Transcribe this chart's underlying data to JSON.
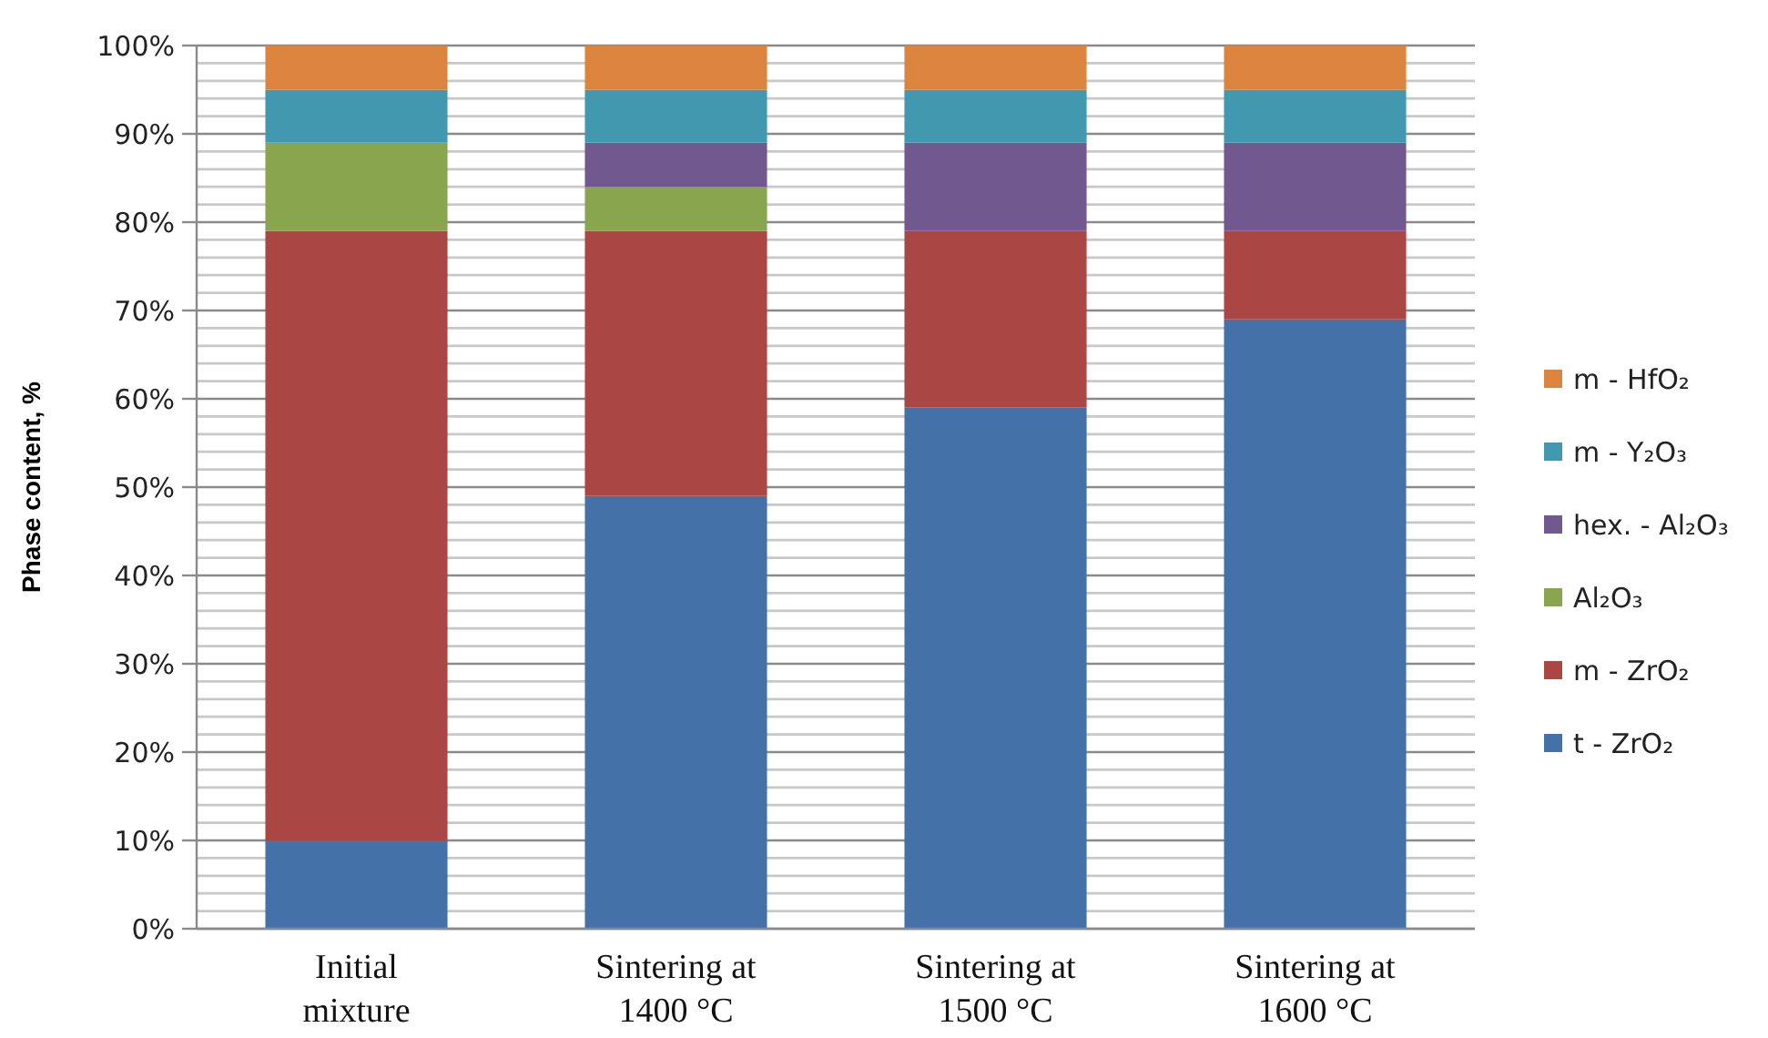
{
  "chart_data": {
    "type": "bar",
    "stacked": true,
    "ylabel": "Phase content, %",
    "categories": [
      "Initial mixture",
      "Sintering at 1400 °C",
      "Sintering at 1500 °C",
      "Sintering at 1600 °C"
    ],
    "series": [
      {
        "name": "t - ZrO₂",
        "color": "#4472a8",
        "values": [
          10,
          49,
          59,
          69
        ]
      },
      {
        "name": "m - ZrO₂",
        "color": "#aa4644",
        "values": [
          69,
          30,
          20,
          10
        ]
      },
      {
        "name": "Al₂O₃",
        "color": "#89a54e",
        "values": [
          10,
          5,
          0,
          0
        ]
      },
      {
        "name": "hex. - Al₂O₃",
        "color": "#71588f",
        "values": [
          0,
          5,
          10,
          10
        ]
      },
      {
        "name": "m - Y₂O₃",
        "color": "#4198af",
        "values": [
          6,
          6,
          6,
          6
        ]
      },
      {
        "name": "m - HfO₂",
        "color": "#db843d",
        "values": [
          5,
          5,
          5,
          5
        ]
      }
    ],
    "ylim": [
      0,
      100
    ],
    "yticks": [
      {
        "value": 0,
        "label": "0%"
      },
      {
        "value": 2,
        "label": null
      },
      {
        "value": 4,
        "label": null
      },
      {
        "value": 6,
        "label": null
      },
      {
        "value": 8,
        "label": null
      },
      {
        "value": 10,
        "label": "10%"
      },
      {
        "value": 12,
        "label": null
      },
      {
        "value": 14,
        "label": null
      },
      {
        "value": 16,
        "label": null
      },
      {
        "value": 18,
        "label": null
      },
      {
        "value": 20,
        "label": "20%"
      },
      {
        "value": 22,
        "label": null
      },
      {
        "value": 24,
        "label": null
      },
      {
        "value": 26,
        "label": null
      },
      {
        "value": 28,
        "label": null
      },
      {
        "value": 30,
        "label": "30%"
      },
      {
        "value": 32,
        "label": null
      },
      {
        "value": 34,
        "label": null
      },
      {
        "value": 36,
        "label": null
      },
      {
        "value": 38,
        "label": null
      },
      {
        "value": 40,
        "label": "40%"
      },
      {
        "value": 42,
        "label": null
      },
      {
        "value": 44,
        "label": null
      },
      {
        "value": 46,
        "label": null
      },
      {
        "value": 48,
        "label": null
      },
      {
        "value": 50,
        "label": "50%"
      },
      {
        "value": 52,
        "label": null
      },
      {
        "value": 54,
        "label": null
      },
      {
        "value": 56,
        "label": null
      },
      {
        "value": 58,
        "label": null
      },
      {
        "value": 60,
        "label": "60%"
      },
      {
        "value": 62,
        "label": null
      },
      {
        "value": 64,
        "label": null
      },
      {
        "value": 66,
        "label": null
      },
      {
        "value": 68,
        "label": null
      },
      {
        "value": 70,
        "label": "70%"
      },
      {
        "value": 72,
        "label": null
      },
      {
        "value": 74,
        "label": null
      },
      {
        "value": 76,
        "label": null
      },
      {
        "value": 78,
        "label": null
      },
      {
        "value": 80,
        "label": "80%"
      },
      {
        "value": 82,
        "label": null
      },
      {
        "value": 84,
        "label": null
      },
      {
        "value": 86,
        "label": null
      },
      {
        "value": 88,
        "label": null
      },
      {
        "value": 90,
        "label": "90%"
      },
      {
        "value": 92,
        "label": null
      },
      {
        "value": 94,
        "label": null
      },
      {
        "value": 96,
        "label": null
      },
      {
        "value": 98,
        "label": null
      },
      {
        "value": 100,
        "label": "100%"
      }
    ],
    "grid": "y",
    "legend": "right"
  }
}
